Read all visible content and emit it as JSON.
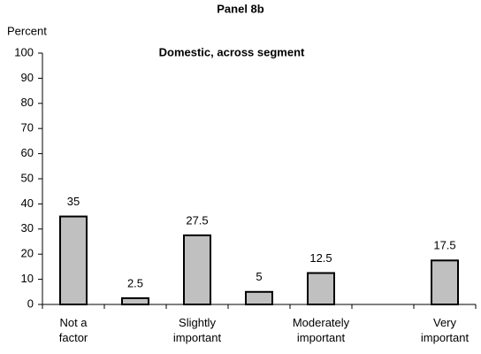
{
  "chart_data": {
    "type": "bar",
    "title": "Panel 8b",
    "subtitle": "Domestic, across segment",
    "y_label": "Percent",
    "categories": [
      "Not a\nfactor",
      null,
      "Slightly\nimportant",
      null,
      "Moderately\nimportant",
      null,
      "Very\nimportant"
    ],
    "values": [
      35,
      2.5,
      27.5,
      5,
      12.5,
      null,
      17.5
    ],
    "color": "#c0c0c0",
    "ylim": [
      0,
      100
    ],
    "yticks": [
      0,
      10,
      20,
      30,
      40,
      50,
      60,
      70,
      80,
      90,
      100
    ],
    "grid": false
  }
}
